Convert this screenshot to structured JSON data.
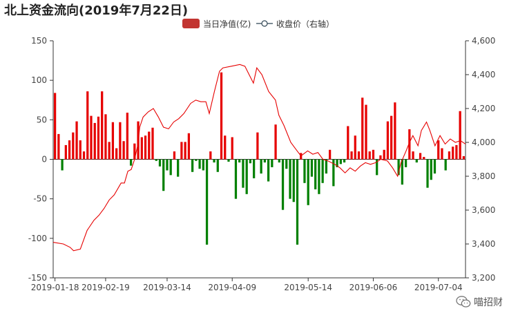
{
  "title": "北上资金流向(2019年7月22日)",
  "legend": [
    {
      "label": "当日净值(亿)",
      "icon": "bar-legend-icon",
      "color": "#c23531"
    },
    {
      "label": "收盘价（右轴）",
      "icon": "line-legend-icon",
      "color": "#2f4554"
    }
  ],
  "watermark": {
    "text": "喵招财",
    "icon": "wechat-icon"
  },
  "colors": {
    "positive": "#e60000",
    "negative": "#008000",
    "line": "#e60000"
  },
  "chart_data": {
    "type": "bar",
    "x_tick_labels": [
      "2019-01-18",
      "2019-02-19",
      "2019-03-14",
      "2019-04-09",
      "2019-05-14",
      "2019-06-06",
      "2019-07-04"
    ],
    "x_tick_index": [
      0,
      14,
      31,
      49,
      70,
      88,
      106
    ],
    "y_left": {
      "ticks": [
        -150,
        -100,
        -50,
        0,
        50,
        100,
        150
      ],
      "range": [
        -150,
        150
      ]
    },
    "y_right": {
      "ticks": [
        "3,200",
        "3,400",
        "3,600",
        "3,800",
        "4,000",
        "4,200",
        "4,400",
        "4,600"
      ],
      "range": [
        3200,
        4600
      ]
    },
    "series": [
      {
        "name": "当日净值(亿)",
        "type": "bar",
        "values": [
          84,
          32,
          -14,
          18,
          24,
          34,
          48,
          24,
          10,
          86,
          55,
          46,
          54,
          86,
          57,
          22,
          47,
          14,
          47,
          23,
          59,
          -8,
          20,
          48,
          28,
          30,
          35,
          40,
          -2,
          -9,
          -40,
          -14,
          -20,
          10,
          -22,
          22,
          22,
          33,
          -16,
          -2,
          -12,
          -14,
          -108,
          10,
          -4,
          -16,
          110,
          30,
          -3,
          28,
          -50,
          -4,
          -36,
          -44,
          -5,
          -24,
          34,
          -18,
          -4,
          -28,
          -10,
          44,
          -4,
          -64,
          -12,
          -50,
          -54,
          -108,
          8,
          -30,
          -58,
          -22,
          -38,
          -44,
          -30,
          -18,
          12,
          -34,
          -10,
          -6,
          -4,
          42,
          10,
          30,
          10,
          78,
          69,
          10,
          12,
          -20,
          5,
          12,
          48,
          55,
          72,
          -20,
          -32,
          -10,
          38,
          10,
          -4,
          8,
          3,
          -36,
          -26,
          -18,
          24,
          14,
          -14,
          10,
          16,
          18,
          61,
          4
        ]
      },
      {
        "name": "收盘价（右轴）",
        "type": "line",
        "points": [
          [
            0,
            3410
          ],
          [
            6,
            3400
          ],
          [
            10,
            3380
          ],
          [
            12,
            3360
          ],
          [
            16,
            3370
          ],
          [
            20,
            3480
          ],
          [
            24,
            3540
          ],
          [
            27,
            3570
          ],
          [
            30,
            3610
          ],
          [
            33,
            3660
          ],
          [
            36,
            3690
          ],
          [
            40,
            3760
          ],
          [
            42,
            3760
          ],
          [
            44,
            3830
          ],
          [
            46,
            3840
          ],
          [
            48,
            3900
          ],
          [
            50,
            3990
          ],
          [
            51,
            4090
          ],
          [
            53,
            4150
          ],
          [
            56,
            4180
          ],
          [
            59,
            4200
          ],
          [
            62,
            4150
          ],
          [
            65,
            4090
          ],
          [
            68,
            4080
          ],
          [
            71,
            4120
          ],
          [
            74,
            4140
          ],
          [
            77,
            4170
          ],
          [
            81,
            4230
          ],
          [
            84,
            4250
          ],
          [
            87,
            4240
          ],
          [
            90,
            4240
          ],
          [
            92,
            4170
          ],
          [
            95,
            4300
          ],
          [
            98,
            4420
          ],
          [
            100,
            4440
          ],
          [
            105,
            4450
          ],
          [
            110,
            4460
          ],
          [
            113,
            4450
          ],
          [
            115,
            4410
          ],
          [
            118,
            4350
          ],
          [
            120,
            4440
          ],
          [
            123,
            4400
          ],
          [
            127,
            4300
          ],
          [
            131,
            4250
          ],
          [
            133,
            4160
          ],
          [
            136,
            4100
          ],
          [
            140,
            4000
          ],
          [
            143,
            3960
          ],
          [
            146,
            3920
          ],
          [
            150,
            3950
          ],
          [
            153,
            3930
          ],
          [
            156,
            3940
          ],
          [
            159,
            3900
          ],
          [
            162,
            3890
          ],
          [
            166,
            3870
          ],
          [
            169,
            3850
          ],
          [
            172,
            3820
          ],
          [
            175,
            3850
          ],
          [
            178,
            3830
          ],
          [
            181,
            3860
          ],
          [
            184,
            3880
          ],
          [
            187,
            3870
          ],
          [
            190,
            3880
          ],
          [
            193,
            3900
          ],
          [
            197,
            3890
          ],
          [
            200,
            3850
          ],
          [
            203,
            3800
          ],
          [
            205,
            3880
          ],
          [
            208,
            3950
          ],
          [
            210,
            4000
          ],
          [
            212,
            4040
          ],
          [
            215,
            3980
          ],
          [
            217,
            4070
          ],
          [
            220,
            4120
          ],
          [
            222,
            4070
          ],
          [
            225,
            3980
          ],
          [
            228,
            4040
          ],
          [
            231,
            3990
          ],
          [
            234,
            4020
          ],
          [
            237,
            4000
          ],
          [
            240,
            4010
          ],
          [
            243,
            3990
          ]
        ]
      }
    ],
    "line_points_note": ""
  }
}
